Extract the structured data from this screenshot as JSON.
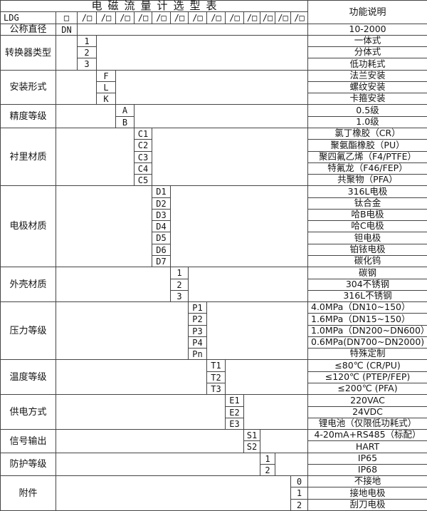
{
  "title": "电磁流量计选型表",
  "right_header": "功能说明",
  "model_row": {
    "label": "LDG",
    "base_code": "□",
    "slot_code": "/□",
    "slot_count": 13
  },
  "colors": {
    "border": "#454545",
    "text": "#141414",
    "background": "#ffffff"
  },
  "sections": [
    {
      "label": "公称直径",
      "col": 0,
      "rows": [
        {
          "code": "DN",
          "desc": "10-2000"
        }
      ]
    },
    {
      "label": "转换器类型",
      "col": 1,
      "rows": [
        {
          "code": "1",
          "desc": "一体式"
        },
        {
          "code": "2",
          "desc": "分体式"
        },
        {
          "code": "3",
          "desc": "低功耗式"
        }
      ]
    },
    {
      "label": "安装形式",
      "col": 2,
      "rows": [
        {
          "code": "F",
          "desc": "法兰安装"
        },
        {
          "code": "L",
          "desc": "螺纹安装"
        },
        {
          "code": "K",
          "desc": "卡箍安装"
        }
      ]
    },
    {
      "label": "精度等级",
      "col": 3,
      "rows": [
        {
          "code": "A",
          "desc": "0.5级"
        },
        {
          "code": "B",
          "desc": "1.0级"
        }
      ]
    },
    {
      "label": "衬里材质",
      "col": 4,
      "rows": [
        {
          "code": "C1",
          "desc": "氯丁橡胶（CR）"
        },
        {
          "code": "C2",
          "desc": "聚氨酯橡胶（PU）"
        },
        {
          "code": "C3",
          "desc": "聚四氟乙烯（F4/PTFE）"
        },
        {
          "code": "C4",
          "desc": "特氟龙（F46/FEP）"
        },
        {
          "code": "C5",
          "desc": "共聚物（PFA）"
        }
      ]
    },
    {
      "label": "电极材质",
      "col": 5,
      "rows": [
        {
          "code": "D1",
          "desc": "316L电极"
        },
        {
          "code": "D2",
          "desc": "钛合金"
        },
        {
          "code": "D3",
          "desc": "哈B电极"
        },
        {
          "code": "D4",
          "desc": "哈C电极"
        },
        {
          "code": "D5",
          "desc": "钽电极"
        },
        {
          "code": "D6",
          "desc": "铂铱电极"
        },
        {
          "code": "D7",
          "desc": "碳化钨"
        }
      ]
    },
    {
      "label": "外壳材质",
      "col": 6,
      "rows": [
        {
          "code": "1",
          "desc": "碳钢"
        },
        {
          "code": "2",
          "desc": "304不锈钢"
        },
        {
          "code": "3",
          "desc": "316L不锈钢"
        }
      ]
    },
    {
      "label": "压力等级",
      "col": 7,
      "align": "left",
      "rows": [
        {
          "code": "P1",
          "desc": "4.0MPa（DN10~150）"
        },
        {
          "code": "P2",
          "desc": "1.6MPa（DN15~150）"
        },
        {
          "code": "P3",
          "desc": "1.0MPa（DN200~DN600）"
        },
        {
          "code": "P4",
          "desc": "0.6MPa(DN700~DN2000)"
        },
        {
          "code": "Pn",
          "desc": "特殊定制",
          "align": "center"
        }
      ]
    },
    {
      "label": "温度等级",
      "col": 8,
      "rows": [
        {
          "code": "T1",
          "desc": "≤80℃ (CR/PU)"
        },
        {
          "code": "T2",
          "desc": "≤120℃ (PTEP/FEP)"
        },
        {
          "code": "T3",
          "desc": "≤200℃ (PFA)"
        }
      ]
    },
    {
      "label": "供电方式",
      "col": 9,
      "rows": [
        {
          "code": "E1",
          "desc": "220VAC"
        },
        {
          "code": "E2",
          "desc": "24VDC"
        },
        {
          "code": "E3",
          "desc": "锂电池（仅限低功耗式）"
        }
      ]
    },
    {
      "label": "信号输出",
      "col": 10,
      "rows": [
        {
          "code": "S1",
          "desc": "4-20mA+RS485（标配）"
        },
        {
          "code": "S2",
          "desc": "HART"
        }
      ]
    },
    {
      "label": "防护等级",
      "col": 11,
      "rows": [
        {
          "code": "1",
          "desc": "IP65"
        },
        {
          "code": "2",
          "desc": "IP68"
        }
      ]
    },
    {
      "label": "附件",
      "col": 13,
      "rows": [
        {
          "code": "0",
          "desc": "不接地"
        },
        {
          "code": "1",
          "desc": "接地电极"
        },
        {
          "code": "2",
          "desc": "刮刀电极"
        }
      ]
    }
  ]
}
